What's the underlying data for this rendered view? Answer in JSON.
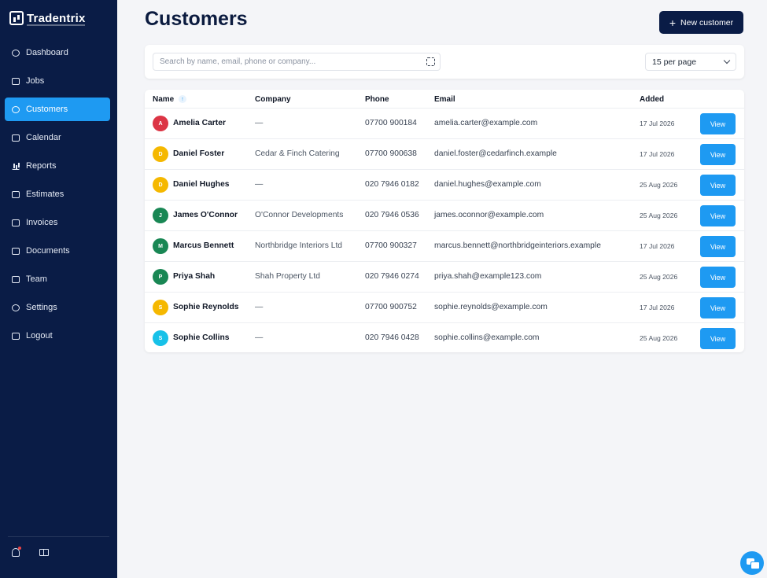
{
  "app": {
    "name": "Tradentrix"
  },
  "sidebar": {
    "items": [
      {
        "label": "Dashboard",
        "icon": "dashboard-icon"
      },
      {
        "label": "Jobs",
        "icon": "briefcase-icon"
      },
      {
        "label": "Customers",
        "icon": "users-icon",
        "active": true
      },
      {
        "label": "Calendar",
        "icon": "calendar-icon"
      },
      {
        "label": "Reports",
        "icon": "bar-chart-icon"
      },
      {
        "label": "Estimates",
        "icon": "file-icon"
      },
      {
        "label": "Invoices",
        "icon": "invoice-icon"
      },
      {
        "label": "Documents",
        "icon": "folder-icon"
      },
      {
        "label": "Team",
        "icon": "team-icon"
      },
      {
        "label": "Settings",
        "icon": "gear-icon"
      },
      {
        "label": "Logout",
        "icon": "logout-icon"
      }
    ],
    "footer_icons": [
      "bell-icon",
      "book-icon"
    ]
  },
  "header": {
    "title": "Customers",
    "new_button": "New customer"
  },
  "filters": {
    "search_placeholder": "Search by name, email, phone or company...",
    "per_page": "15 per page"
  },
  "table": {
    "columns": {
      "name": "Name",
      "company": "Company",
      "phone": "Phone",
      "email": "Email",
      "added": "Added"
    },
    "rows": [
      {
        "initial": "A",
        "color": "#dc3545",
        "name": "Amelia Carter",
        "company": "—",
        "phone": "07700 900184",
        "email": "amelia.carter@example.com",
        "added": "17 Jul 2026",
        "action": "View"
      },
      {
        "initial": "D",
        "color": "#f5b800",
        "name": "Daniel Foster",
        "company": "Cedar & Finch Catering",
        "phone": "07700 900638",
        "email": "daniel.foster@cedarfinch.example",
        "added": "17 Jul 2026",
        "action": "View"
      },
      {
        "initial": "D",
        "color": "#f5b800",
        "name": "Daniel Hughes",
        "company": "—",
        "phone": "020 7946 0182",
        "email": "daniel.hughes@example.com",
        "added": "25 Aug 2026",
        "action": "View"
      },
      {
        "initial": "J",
        "color": "#198754",
        "name": "James O'Connor",
        "company": "O'Connor Developments",
        "phone": "020 7946 0536",
        "email": "james.oconnor@example.com",
        "added": "25 Aug 2026",
        "action": "View"
      },
      {
        "initial": "M",
        "color": "#198754",
        "name": "Marcus Bennett",
        "company": "Northbridge Interiors Ltd",
        "phone": "07700 900327",
        "email": "marcus.bennett@northbridgeinteriors.example",
        "added": "17 Jul 2026",
        "action": "View"
      },
      {
        "initial": "P",
        "color": "#198754",
        "name": "Priya Shah",
        "company": "Shah Property Ltd",
        "phone": "020 7946 0274",
        "email": "priya.shah@example123.com",
        "added": "25 Aug 2026",
        "action": "View"
      },
      {
        "initial": "S",
        "color": "#f5b800",
        "name": "Sophie Reynolds",
        "company": "—",
        "phone": "07700 900752",
        "email": "sophie.reynolds@example.com",
        "added": "17 Jul 2026",
        "action": "View"
      },
      {
        "initial": "S",
        "color": "#17c1e8",
        "name": "Sophie Collins",
        "company": "—",
        "phone": "020 7946 0428",
        "email": "sophie.collins@example.com",
        "added": "25 Aug 2026",
        "action": "View"
      }
    ]
  },
  "colors": {
    "sidebar": "#0a1c46",
    "accent": "#1e9af2"
  }
}
